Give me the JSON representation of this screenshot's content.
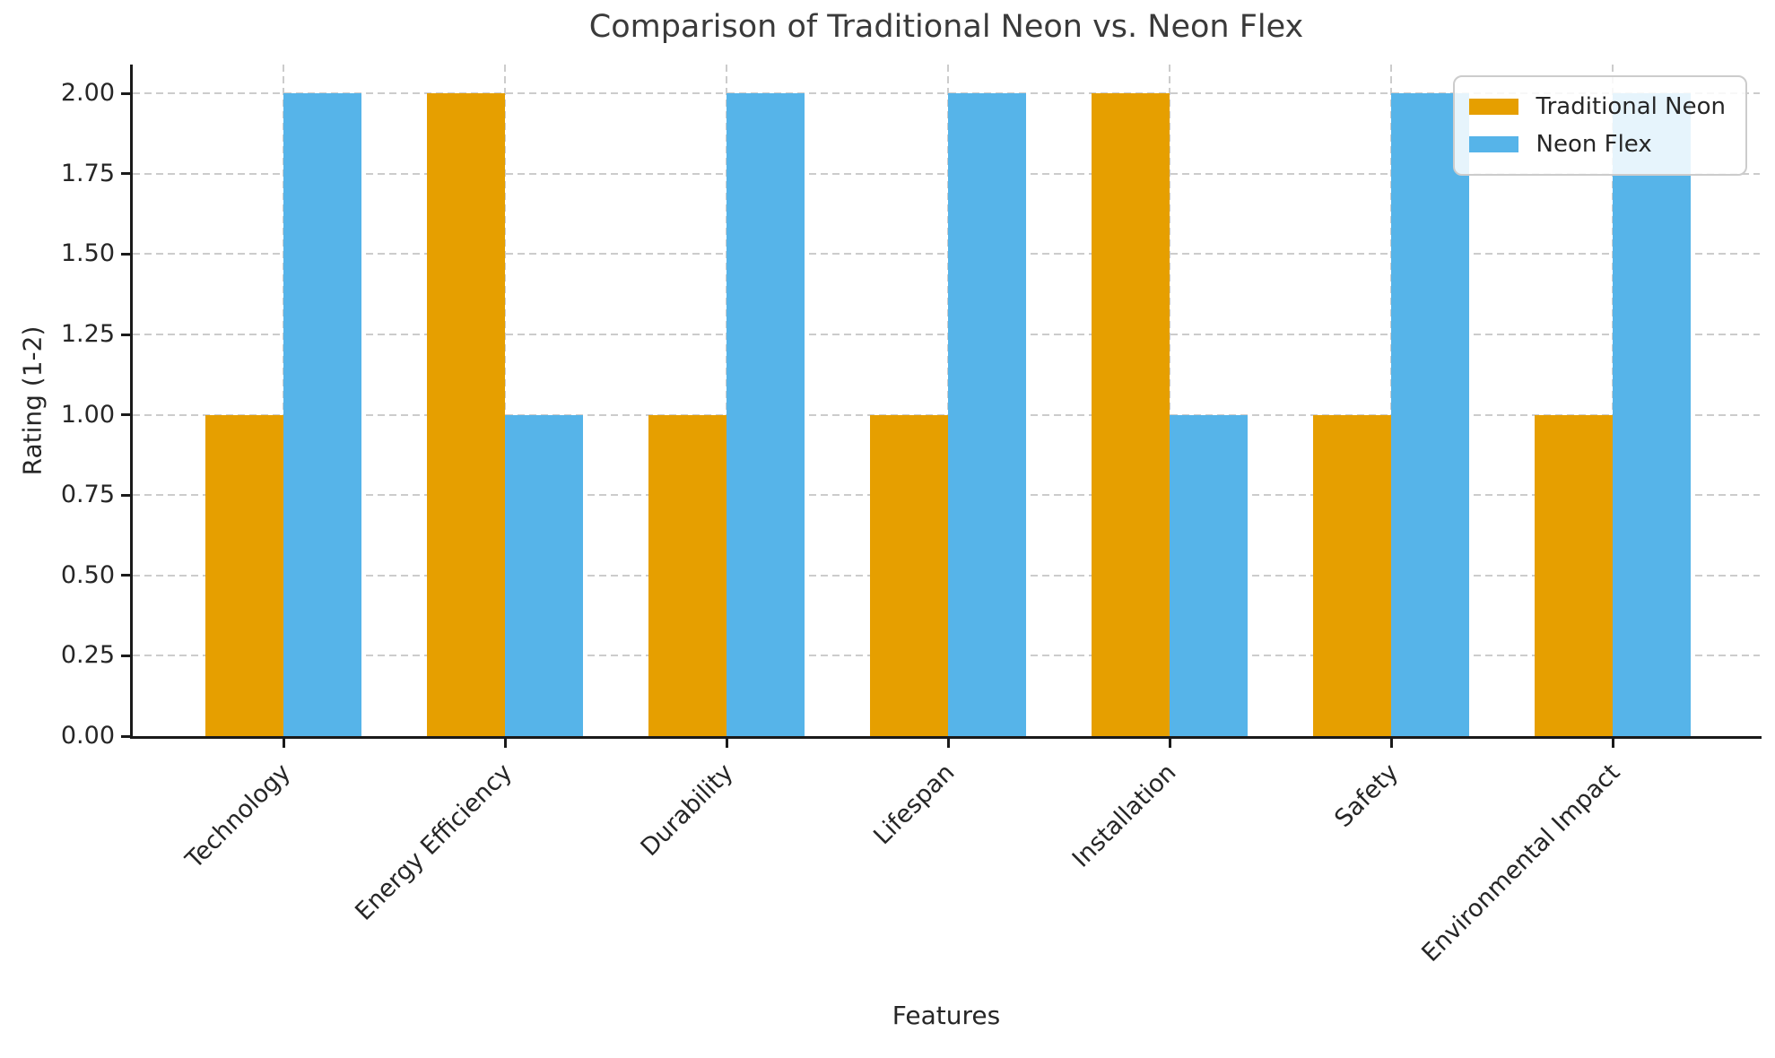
{
  "chart_data": {
    "type": "bar",
    "title": "Comparison of Traditional Neon vs. Neon Flex",
    "xlabel": "Features",
    "ylabel": "Rating (1-2)",
    "categories": [
      "Technology",
      "Energy Efficiency",
      "Durability",
      "Lifespan",
      "Installation",
      "Safety",
      "Environmental Impact"
    ],
    "series": [
      {
        "name": "Traditional Neon",
        "color": "#E69F00",
        "values": [
          1,
          2,
          1,
          1,
          2,
          1,
          1
        ]
      },
      {
        "name": "Neon Flex",
        "color": "#56B4E9",
        "values": [
          2,
          1,
          2,
          2,
          1,
          2,
          2
        ]
      }
    ],
    "ylim": [
      0,
      2.09
    ],
    "yticks": [
      "0.00",
      "0.25",
      "0.50",
      "0.75",
      "1.00",
      "1.25",
      "1.50",
      "1.75",
      "2.00"
    ],
    "grid": true,
    "grid_style": "dashed",
    "legend_position": "upper right",
    "x_tick_rotation": 45
  },
  "colors": {
    "background": "#ffffff",
    "grid": "#cccccc",
    "spine": "#1a1a1a",
    "text": "#262626",
    "title_text": "#3a3a3a",
    "legend_border": "#cccccc"
  }
}
